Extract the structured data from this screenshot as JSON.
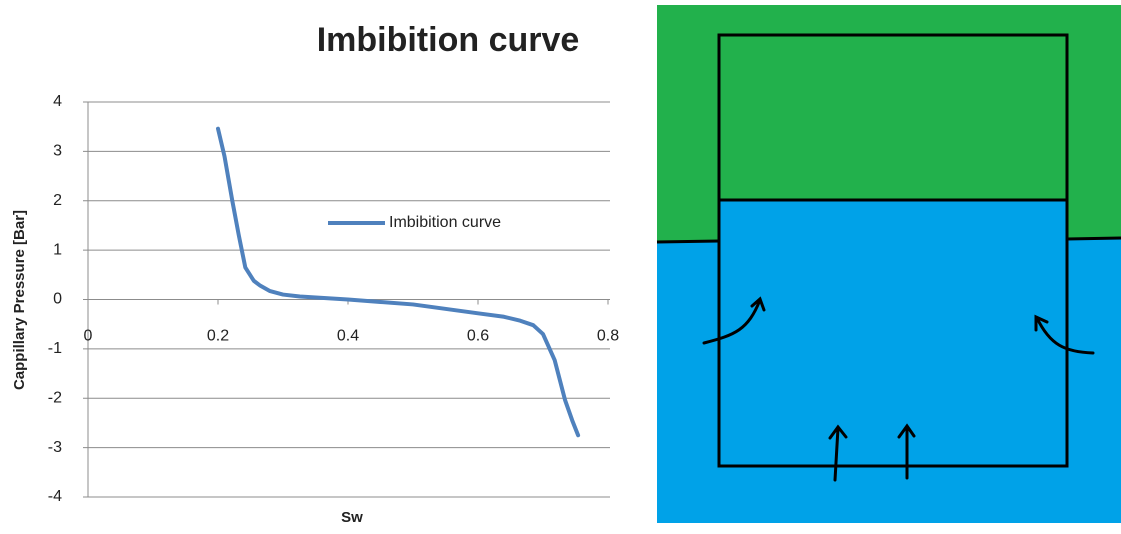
{
  "chart_data": {
    "type": "line",
    "title": "Imbibition curve",
    "x_label": "Sw",
    "y_label": "Cappillary Pressure [Bar]",
    "x": [
      0.2,
      0.21,
      0.222,
      0.232,
      0.242,
      0.255,
      0.265,
      0.28,
      0.3,
      0.326,
      0.4,
      0.5,
      0.6,
      0.64,
      0.665,
      0.685,
      0.7,
      0.718,
      0.734,
      0.745,
      0.754
    ],
    "series": [
      {
        "name": "Imbibition curve",
        "color": "#4f81bd",
        "values": [
          3.46,
          2.9,
          2.0,
          1.3,
          0.65,
          0.38,
          0.28,
          0.17,
          0.1,
          0.06,
          0,
          -0.1,
          -0.28,
          -0.35,
          -0.43,
          -0.52,
          -0.7,
          -1.23,
          -2.04,
          -2.45,
          -2.75
        ]
      }
    ],
    "xlim": [
      0,
      0.8
    ],
    "xticks": [
      0,
      0.2,
      0.4,
      0.6,
      0.8
    ],
    "ylim": [
      -4,
      4
    ],
    "yticks": [
      -4,
      -3,
      -2,
      -1,
      0,
      1,
      2,
      3,
      4
    ],
    "grid": true,
    "legend": "right"
  }
}
